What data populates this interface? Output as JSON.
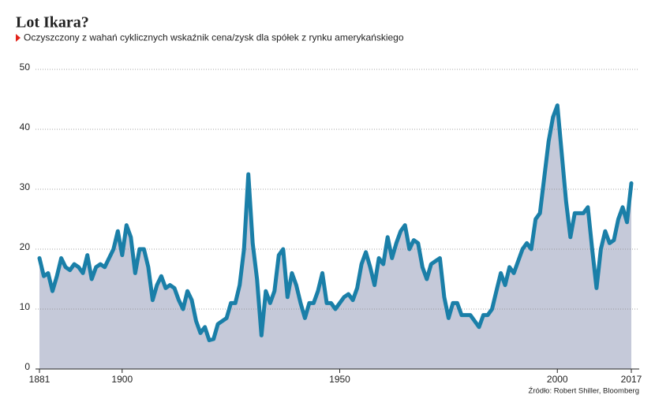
{
  "chart_data": {
    "type": "area",
    "title": "Lot Ikara?",
    "subtitle": "Oczyszczony z wahań cyklicznych wskaźnik cena/zysk dla spółek z rynku amerykańskiego",
    "source": "Źródło: Robert Shiller, Bloomberg",
    "x": [
      1881,
      1882,
      1883,
      1884,
      1885,
      1886,
      1887,
      1888,
      1889,
      1890,
      1891,
      1892,
      1893,
      1894,
      1895,
      1896,
      1897,
      1898,
      1899,
      1900,
      1901,
      1902,
      1903,
      1904,
      1905,
      1906,
      1907,
      1908,
      1909,
      1910,
      1911,
      1912,
      1913,
      1914,
      1915,
      1916,
      1917,
      1918,
      1919,
      1920,
      1921,
      1922,
      1923,
      1924,
      1925,
      1926,
      1927,
      1928,
      1929,
      1930,
      1931,
      1932,
      1933,
      1934,
      1935,
      1936,
      1937,
      1938,
      1939,
      1940,
      1941,
      1942,
      1943,
      1944,
      1945,
      1946,
      1947,
      1948,
      1949,
      1950,
      1951,
      1952,
      1953,
      1954,
      1955,
      1956,
      1957,
      1958,
      1959,
      1960,
      1961,
      1962,
      1963,
      1964,
      1965,
      1966,
      1967,
      1968,
      1969,
      1970,
      1971,
      1972,
      1973,
      1974,
      1975,
      1976,
      1977,
      1978,
      1979,
      1980,
      1981,
      1982,
      1983,
      1984,
      1985,
      1986,
      1987,
      1988,
      1989,
      1990,
      1991,
      1992,
      1993,
      1994,
      1995,
      1996,
      1997,
      1998,
      1999,
      2000,
      2001,
      2002,
      2003,
      2004,
      2005,
      2006,
      2007,
      2008,
      2009,
      2010,
      2011,
      2012,
      2013,
      2014,
      2015,
      2016,
      2017
    ],
    "values": [
      18.5,
      15.5,
      16,
      13,
      15.5,
      18.5,
      17,
      16.5,
      17.5,
      17,
      16,
      19,
      15,
      17,
      17.5,
      17,
      18.5,
      20,
      23,
      19,
      24,
      22,
      16,
      20,
      20,
      17,
      11.5,
      14,
      15.5,
      13.5,
      14,
      13.5,
      11.5,
      10,
      13,
      11.5,
      8,
      6,
      7,
      4.8,
      5,
      7.5,
      8,
      8.5,
      11,
      11,
      14,
      20,
      32.5,
      21,
      15,
      5.6,
      13,
      11,
      13,
      19,
      20,
      12,
      16,
      14,
      11,
      8.5,
      11,
      11,
      13,
      16,
      11,
      11,
      10,
      11,
      12,
      12.5,
      11.5,
      13.5,
      17.5,
      19.5,
      17,
      14,
      18.5,
      17.5,
      22,
      18.5,
      21,
      23,
      24,
      20,
      21.5,
      21,
      17,
      15,
      17.5,
      18,
      18.5,
      12,
      8.5,
      11,
      11,
      9,
      9,
      9,
      8,
      7,
      9,
      9,
      10,
      13,
      16,
      14,
      17,
      16,
      18,
      20,
      21,
      20,
      25,
      26,
      32,
      38,
      42,
      44,
      36,
      28,
      22,
      26,
      26,
      26,
      27,
      20,
      13.5,
      20,
      23,
      21,
      21.5,
      25,
      27,
      24.5,
      31
    ],
    "color": "#1a7fa8",
    "fill": "#c5c9d9",
    "xlim": [
      1881,
      2017
    ],
    "xticks": [
      1881,
      1900,
      1950,
      2000,
      2017
    ],
    "ylim": [
      0,
      50
    ],
    "yticks": [
      0,
      10,
      20,
      30,
      40,
      50
    ],
    "grid": true
  }
}
